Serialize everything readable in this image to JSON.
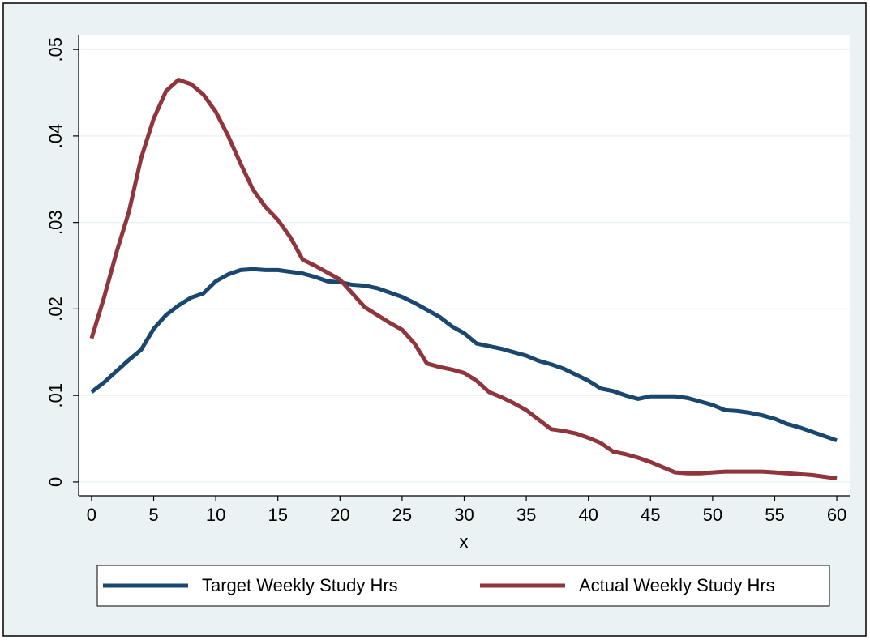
{
  "chart_data": {
    "type": "line",
    "x_label": "x",
    "x": [
      0,
      1,
      2,
      3,
      4,
      5,
      6,
      7,
      8,
      9,
      10,
      11,
      12,
      13,
      14,
      15,
      16,
      17,
      18,
      19,
      20,
      21,
      22,
      23,
      24,
      25,
      26,
      27,
      28,
      29,
      30,
      31,
      32,
      33,
      34,
      35,
      36,
      37,
      38,
      39,
      40,
      41,
      42,
      43,
      44,
      45,
      46,
      47,
      48,
      49,
      50,
      51,
      52,
      53,
      54,
      55,
      56,
      57,
      58,
      59,
      60
    ],
    "series": [
      {
        "name": "Target Weekly Study Hrs",
        "color": "#1a476f",
        "values": [
          0.0104,
          0.0115,
          0.0128,
          0.0141,
          0.0153,
          0.0177,
          0.0193,
          0.0204,
          0.0213,
          0.0218,
          0.0232,
          0.024,
          0.0245,
          0.0246,
          0.0245,
          0.0245,
          0.0243,
          0.0241,
          0.0237,
          0.0232,
          0.0231,
          0.0228,
          0.0227,
          0.0224,
          0.0219,
          0.0214,
          0.0207,
          0.0199,
          0.0191,
          0.018,
          0.0172,
          0.016,
          0.0157,
          0.0154,
          0.015,
          0.0146,
          0.014,
          0.0136,
          0.0131,
          0.0124,
          0.0117,
          0.0108,
          0.0105,
          0.01,
          0.0096,
          0.0099,
          0.0099,
          0.0099,
          0.0097,
          0.0093,
          0.0089,
          0.0083,
          0.0082,
          0.008,
          0.0077,
          0.0073,
          0.0067,
          0.0063,
          0.0058,
          0.0053,
          0.0048
        ]
      },
      {
        "name": "Actual Weekly Study Hrs",
        "color": "#90353b",
        "values": [
          0.0166,
          0.0213,
          0.0265,
          0.0312,
          0.0375,
          0.042,
          0.0452,
          0.0465,
          0.046,
          0.0448,
          0.0428,
          0.04,
          0.0368,
          0.0338,
          0.0318,
          0.0303,
          0.0283,
          0.0257,
          0.025,
          0.0242,
          0.0234,
          0.0218,
          0.0202,
          0.0193,
          0.0184,
          0.0176,
          0.016,
          0.0137,
          0.0133,
          0.013,
          0.0126,
          0.0117,
          0.0104,
          0.0098,
          0.0091,
          0.0083,
          0.0072,
          0.0061,
          0.0059,
          0.0056,
          0.0051,
          0.0045,
          0.0035,
          0.0032,
          0.0028,
          0.0023,
          0.0017,
          0.0011,
          0.001,
          0.001,
          0.0011,
          0.0012,
          0.0012,
          0.0012,
          0.0012,
          0.0011,
          0.001,
          0.0009,
          0.0008,
          0.0006,
          0.0004
        ]
      }
    ],
    "xlim": [
      -1.04,
      61.04
    ],
    "xticks": [
      0,
      5,
      10,
      15,
      20,
      25,
      30,
      35,
      40,
      45,
      50,
      55,
      60
    ],
    "ylim": [
      -0.0016,
      0.0517
    ],
    "yticks": [
      0,
      {
        "value": 0.01,
        "label": ".01"
      },
      {
        "value": 0.02,
        "label": ".02"
      },
      {
        "value": 0.03,
        "label": ".03"
      },
      {
        "value": 0.04,
        "label": ".04"
      },
      {
        "value": 0.05,
        "label": ".05"
      }
    ],
    "grid": true,
    "legend": "bottom"
  }
}
